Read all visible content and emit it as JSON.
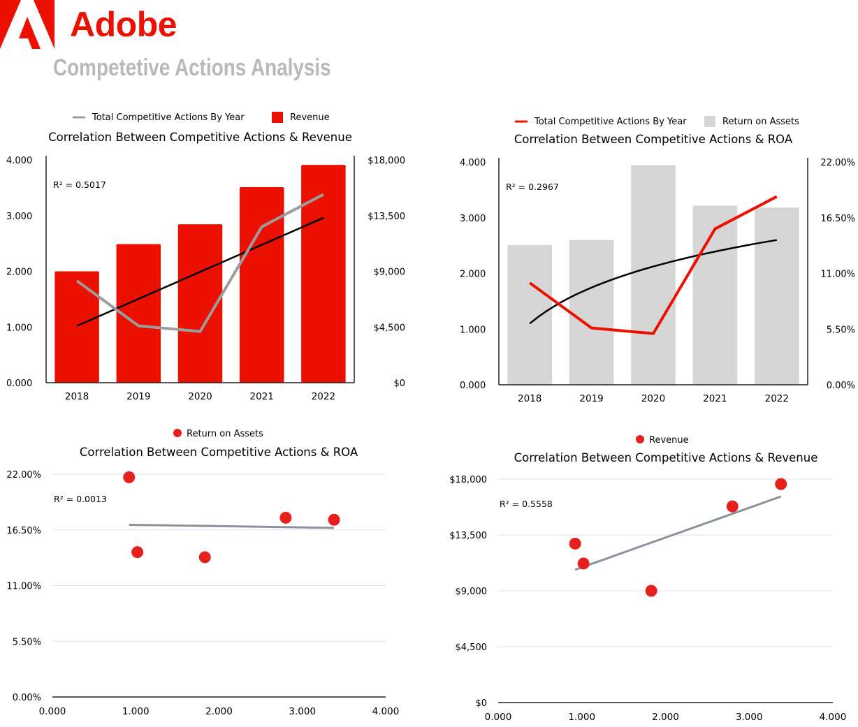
{
  "header": {
    "brand": "Adobe",
    "subtitle": "Competetive Actions Analysis",
    "brand_color": "#eb1000",
    "logo_icon": "adobe-logo-icon"
  },
  "colors": {
    "red": "#eb1000",
    "grey_line": "#9c9c9c",
    "bar_grey": "#d6d6d6",
    "trend_black": "#000000",
    "trend_grey": "#8a939b",
    "dot_red": "#e8201d"
  },
  "chart_data": [
    {
      "type": "bar",
      "title": "Correlation Between Competitive Actions & Revenue",
      "categories": [
        "2018",
        "2019",
        "2020",
        "2021",
        "2022"
      ],
      "bar_series": {
        "name": "Revenue",
        "values": [
          9000,
          11200,
          12800,
          15800,
          17600
        ]
      },
      "line_series": {
        "name": "Total Competitive Actions By Year",
        "values": [
          1.83,
          1.02,
          0.92,
          2.8,
          3.38
        ]
      },
      "trend": {
        "type": "linear",
        "start": 1.02,
        "end": 2.96
      },
      "r2_label": "R² = 0.5017",
      "left_axis": {
        "ticks": [
          "4.000",
          "3.000",
          "2.000",
          "1.000",
          "0.000"
        ],
        "ylim": [
          0,
          4
        ]
      },
      "right_axis": {
        "ticks": [
          "$18,000",
          "$13,500",
          "$9,000",
          "$4,500",
          "$0"
        ],
        "ylim": [
          0,
          18000
        ]
      },
      "legend_position": "top"
    },
    {
      "type": "bar",
      "title": "Correlation Between Competitive Actions & ROA",
      "categories": [
        "2018",
        "2019",
        "2020",
        "2021",
        "2022"
      ],
      "bar_series": {
        "name": "Return on Assets",
        "values": [
          13.8,
          14.3,
          21.7,
          17.7,
          17.5
        ]
      },
      "line_series": {
        "name": "Total Competitive Actions By Year",
        "values": [
          1.83,
          1.02,
          0.92,
          2.8,
          3.38
        ]
      },
      "trend": {
        "type": "logarithmic",
        "start": 1.1,
        "end": 2.6
      },
      "r2_label": "R² = 0.2967",
      "left_axis": {
        "ticks": [
          "4.000",
          "3.000",
          "2.000",
          "1.000",
          "0.000"
        ],
        "ylim": [
          0,
          4
        ]
      },
      "right_axis": {
        "ticks": [
          "22.00%",
          "16.50%",
          "11.00%",
          "5.50%",
          "0.00%"
        ],
        "ylim": [
          0,
          22
        ]
      },
      "legend_position": "top"
    },
    {
      "type": "scatter",
      "title": "Correlation Between Competitive Actions & ROA",
      "series": [
        {
          "name": "Return on Assets",
          "x": [
            0.92,
            1.02,
            1.83,
            2.8,
            3.38
          ],
          "y": [
            21.7,
            14.3,
            13.8,
            17.7,
            17.5
          ]
        }
      ],
      "trend": {
        "x": [
          0.92,
          3.38
        ],
        "y": [
          17.0,
          16.7
        ]
      },
      "r2_label": "R² = 0.0013",
      "y_ticks": [
        "22.00%",
        "16.50%",
        "11.00%",
        "5.50%",
        "0.00%"
      ],
      "x_ticks": [
        "0.000",
        "1.000",
        "2.000",
        "3.000",
        "4.000"
      ],
      "xlim": [
        0,
        4
      ],
      "ylim": [
        0,
        22
      ],
      "legend_position": "top"
    },
    {
      "type": "scatter",
      "title": "Correlation Between Competitive Actions & Revenue",
      "series": [
        {
          "name": "Revenue",
          "x": [
            0.92,
            1.02,
            1.83,
            2.8,
            3.38
          ],
          "y": [
            12800,
            11200,
            9000,
            15800,
            17600
          ]
        }
      ],
      "trend": {
        "x": [
          0.92,
          3.38
        ],
        "y": [
          10700,
          16600
        ]
      },
      "r2_label": "R² = 0.5558",
      "y_ticks": [
        "$18,000",
        "$13,500",
        "$9,000",
        "$4,500",
        "$0"
      ],
      "x_ticks": [
        "0.000",
        "1.000",
        "2.000",
        "3.000",
        "4.000"
      ],
      "xlim": [
        0,
        4
      ],
      "ylim": [
        0,
        18000
      ],
      "legend_position": "top"
    }
  ]
}
